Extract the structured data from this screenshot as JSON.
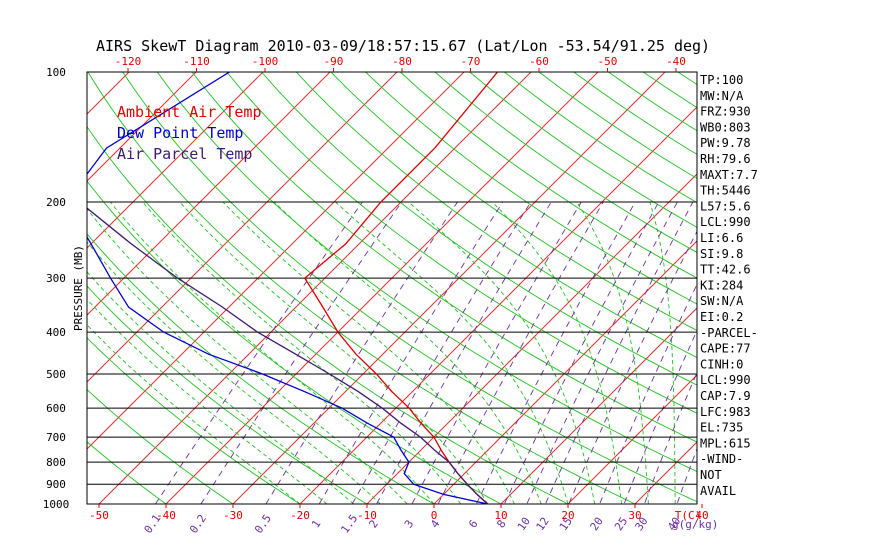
{
  "title": "AIRS SkewT Diagram 2010-03-09/18:57:15.67 (Lat/Lon -53.54/91.25 deg)",
  "colors": {
    "ambient": "#e00000",
    "dewpoint": "#0000cc",
    "parcel": "#3c1a6e",
    "isotherm": "#e03030",
    "dry_adiabat": "#22c022",
    "moist_adiabat": "#22c022",
    "mixing_ratio": "#6b2fa0",
    "isobar": "#000000",
    "bottom_tick": "#e00000",
    "top_tick": "#e00000"
  },
  "legend": [
    {
      "label": "Ambient Air Temp",
      "color": "#e00000"
    },
    {
      "label": "Dew Point Temp",
      "color": "#0000cc"
    },
    {
      "label": "Air Parcel Temp",
      "color": "#3c1a6e"
    }
  ],
  "indices": [
    "TP:100",
    "MW:N/A",
    "FRZ:930",
    "WB0:803",
    "PW:9.78",
    "RH:79.6",
    "MAXT:7.7",
    "TH:5446",
    "L57:5.6",
    "LCL:990",
    "LI:6.6",
    "SI:9.8",
    "TT:42.6",
    "KI:284",
    "SW:N/A",
    "EI:0.2",
    "-PARCEL-",
    "CAPE:77",
    "CINH:0",
    "LCL:990",
    "CAP:7.9",
    "LFC:983",
    "EL:735",
    "MPL:615",
    "-WIND-",
    "NOT",
    "AVAIL"
  ],
  "chart_data": {
    "type": "line",
    "title": "AIRS SkewT Diagram 2010-03-09/18:57:15.67 (Lat/Lon -53.54/91.25 deg)",
    "ylabel": "PRESSURE (MB)",
    "xlabel": "T(C)",
    "mixing_ratio_label": "g(g/kg)",
    "ylim": [
      1000,
      100
    ],
    "y_scale": "log",
    "pressure_ticks": [
      100,
      200,
      300,
      400,
      500,
      600,
      700,
      800,
      900,
      1000
    ],
    "bottom_temp_ticks": [
      -50,
      -40,
      -30,
      -20,
      -10,
      0,
      10,
      20,
      30,
      40
    ],
    "top_temp_ticks": [
      -120,
      -110,
      -100,
      -90,
      -80,
      -70,
      -60,
      -50,
      -40
    ],
    "mixing_ratio_labels": [
      "0.1",
      "0.2",
      "0.5",
      "1",
      "1.5",
      "2",
      "3",
      "4",
      "6",
      "8",
      "10",
      "12",
      "15",
      "20",
      "25",
      "30",
      "40"
    ],
    "series": [
      {
        "name": "Ambient Air Temp",
        "pressure": [
          1000,
          950,
          900,
          850,
          800,
          750,
          700,
          650,
          600,
          550,
          500,
          450,
          400,
          350,
          300,
          250,
          200,
          150,
          100
        ],
        "temperature": [
          8,
          5,
          2,
          -1,
          -4,
          -7,
          -10,
          -14,
          -18,
          -23,
          -28,
          -34,
          -40,
          -46,
          -53,
          -52,
          -53,
          -53,
          -55
        ]
      },
      {
        "name": "Dew Point Temp",
        "pressure": [
          1000,
          950,
          900,
          850,
          800,
          750,
          700,
          650,
          600,
          550,
          500,
          450,
          400,
          350,
          300,
          250,
          200,
          150,
          100
        ],
        "temperature": [
          8,
          0,
          -6,
          -9,
          -10,
          -13,
          -16,
          -22,
          -28,
          -36,
          -45,
          -56,
          -66,
          -75,
          -82,
          -90,
          -100,
          -102,
          -95
        ]
      },
      {
        "name": "Air Parcel Temp",
        "pressure": [
          1000,
          950,
          900,
          850,
          800,
          750,
          700,
          650,
          600,
          550,
          500,
          450,
          400,
          350,
          300,
          250,
          200,
          150,
          100
        ],
        "temperature": [
          8,
          5,
          2,
          -1,
          -4,
          -8,
          -12,
          -17,
          -22,
          -28,
          -35,
          -43,
          -52,
          -61,
          -72,
          -84,
          -98,
          -114,
          -132
        ]
      }
    ]
  }
}
